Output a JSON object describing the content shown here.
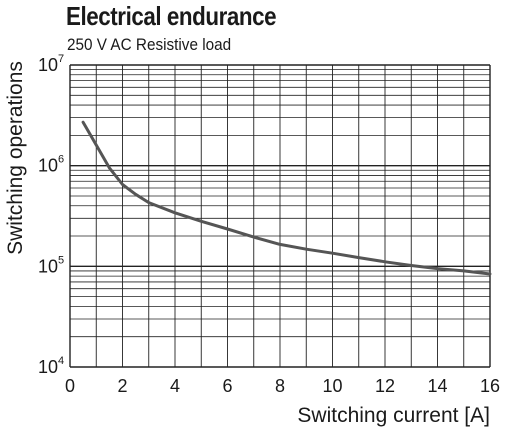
{
  "title": "Electrical endurance",
  "subtitle": "250 V AC Resistive load",
  "colors": {
    "curve": "#555555",
    "grid": "#222222",
    "text": "#1a1a1a"
  },
  "chart_data": {
    "type": "line",
    "title": "Electrical endurance",
    "subtitle": "250 V AC Resistive load",
    "xlabel": "Switching current [A]",
    "ylabel": "Switching operations",
    "xlim": [
      0,
      16
    ],
    "ylim": [
      10000,
      10000000
    ],
    "yscale": "log",
    "grid": true,
    "xticks": [
      "0",
      "2",
      "4",
      "6",
      "8",
      "10",
      "12",
      "14",
      "16"
    ],
    "yticks": [
      {
        "base": "10",
        "exp": "4"
      },
      {
        "base": "10",
        "exp": "5"
      },
      {
        "base": "10",
        "exp": "6"
      },
      {
        "base": "10",
        "exp": "7"
      }
    ],
    "series": [
      {
        "x": [
          0.5,
          1,
          1.5,
          2,
          2.5,
          3,
          4,
          5,
          6,
          7,
          8,
          9,
          10,
          11,
          12,
          13,
          14,
          15,
          16
        ],
        "y": [
          2700000,
          1600000,
          950000,
          650000,
          520000,
          430000,
          340000,
          280000,
          235000,
          195000,
          165000,
          148000,
          135000,
          122000,
          111000,
          102000,
          95000,
          90000,
          84000
        ]
      }
    ]
  }
}
